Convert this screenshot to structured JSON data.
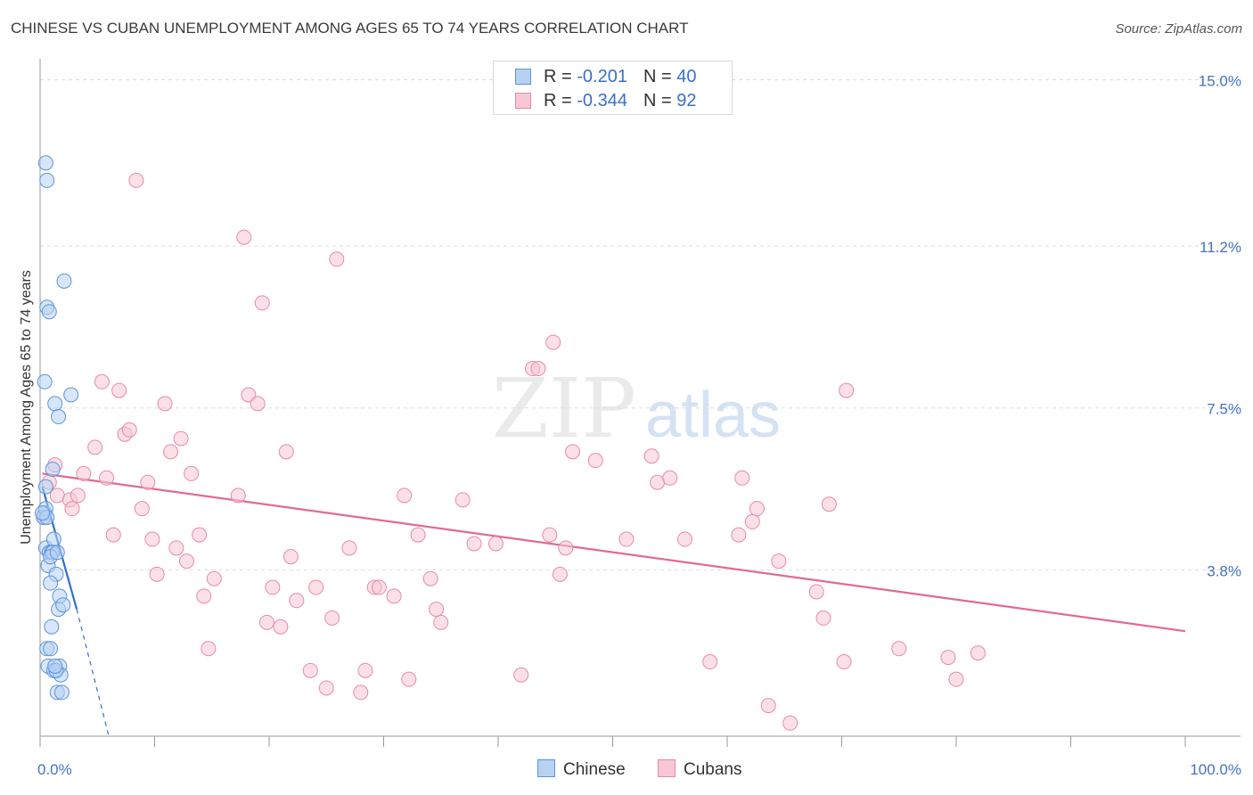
{
  "title": "CHINESE VS CUBAN UNEMPLOYMENT AMONG AGES 65 TO 74 YEARS CORRELATION CHART",
  "source": "Source: ZipAtlas.com",
  "colors": {
    "chinese_fill": "#b7d1f3",
    "chinese_stroke": "#5d93dd",
    "chinese_line": "#2f6fd0",
    "cubans_fill": "#f8c6d4",
    "cubans_stroke": "#e88aa7",
    "cubans_line": "#e06a95",
    "axis_label": "#4472c4",
    "grid": "#dddddd"
  },
  "legend": {
    "rows": [
      {
        "series": "Chinese",
        "r_label": "R =",
        "r_value": "-0.201",
        "n_label": "N =",
        "n_value": "40"
      },
      {
        "series": "Cubans",
        "r_label": "R =",
        "r_value": "-0.344",
        "n_label": "N =",
        "n_value": "92"
      }
    ]
  },
  "bottom_legend": [
    {
      "label": "Chinese"
    },
    {
      "label": "Cubans"
    }
  ],
  "watermark": {
    "part1": "ZIP",
    "part2": "atlas"
  },
  "chart_data": {
    "type": "scatter",
    "title": "CHINESE VS CUBAN UNEMPLOYMENT AMONG AGES 65 TO 74 YEARS CORRELATION CHART",
    "xlabel": "",
    "ylabel": "Unemployment Among Ages 65 to 74 years",
    "xlim": [
      0,
      100
    ],
    "ylim": [
      0,
      15.6
    ],
    "y_ticks": [
      {
        "value": 3.8,
        "label": "3.8%"
      },
      {
        "value": 7.5,
        "label": "7.5%"
      },
      {
        "value": 11.2,
        "label": "11.2%"
      },
      {
        "value": 15.0,
        "label": "15.0%"
      }
    ],
    "x_tick_labels": [
      {
        "value": 0,
        "label": "0.0%"
      },
      {
        "value": 100,
        "label": "100.0%"
      }
    ],
    "x_minor_ticks": [
      0,
      10,
      20,
      30,
      40,
      50,
      60,
      70,
      80,
      90,
      100
    ],
    "grid": true,
    "series": [
      {
        "name": "Chinese",
        "r": -0.201,
        "n": 40,
        "points": [
          [
            0.4,
            5.1
          ],
          [
            0.3,
            5.0
          ],
          [
            0.5,
            5.2
          ],
          [
            0.6,
            5.0
          ],
          [
            0.5,
            4.3
          ],
          [
            0.8,
            4.2
          ],
          [
            1.0,
            4.2
          ],
          [
            1.2,
            4.5
          ],
          [
            1.1,
            4.2
          ],
          [
            0.7,
            3.9
          ],
          [
            1.4,
            3.7
          ],
          [
            0.9,
            3.5
          ],
          [
            1.7,
            3.2
          ],
          [
            1.6,
            2.9
          ],
          [
            2.0,
            3.0
          ],
          [
            1.0,
            2.5
          ],
          [
            0.6,
            2.0
          ],
          [
            0.9,
            2.0
          ],
          [
            0.7,
            1.6
          ],
          [
            1.2,
            1.5
          ],
          [
            1.7,
            1.6
          ],
          [
            1.8,
            1.4
          ],
          [
            1.5,
            1.0
          ],
          [
            1.9,
            1.0
          ],
          [
            0.5,
            5.7
          ],
          [
            1.1,
            6.1
          ],
          [
            1.3,
            7.6
          ],
          [
            1.6,
            7.3
          ],
          [
            2.7,
            7.8
          ],
          [
            0.4,
            8.1
          ],
          [
            0.6,
            9.8
          ],
          [
            0.8,
            9.7
          ],
          [
            2.1,
            10.4
          ],
          [
            0.6,
            12.7
          ],
          [
            0.5,
            13.1
          ],
          [
            1.4,
            1.5
          ],
          [
            0.9,
            4.1
          ],
          [
            0.2,
            5.1
          ],
          [
            1.3,
            1.6
          ],
          [
            1.5,
            4.2
          ]
        ],
        "trend": {
          "x0": 0.2,
          "y0": 5.7,
          "x1": 3.2,
          "y1": 2.9,
          "dash_to": {
            "x": 6.0,
            "y": 0.0
          }
        }
      },
      {
        "name": "Cubans",
        "r": -0.344,
        "n": 92,
        "points": [
          [
            0.3,
            5.0
          ],
          [
            0.8,
            5.8
          ],
          [
            1.3,
            6.2
          ],
          [
            1.5,
            5.5
          ],
          [
            2.6,
            5.4
          ],
          [
            2.8,
            5.2
          ],
          [
            3.3,
            5.5
          ],
          [
            3.8,
            6.0
          ],
          [
            4.8,
            6.6
          ],
          [
            5.4,
            8.1
          ],
          [
            5.8,
            5.9
          ],
          [
            6.4,
            4.6
          ],
          [
            6.9,
            7.9
          ],
          [
            7.4,
            6.9
          ],
          [
            7.8,
            7.0
          ],
          [
            8.4,
            12.7
          ],
          [
            8.9,
            5.2
          ],
          [
            9.4,
            5.8
          ],
          [
            9.8,
            4.5
          ],
          [
            10.2,
            3.7
          ],
          [
            10.9,
            7.6
          ],
          [
            11.4,
            6.5
          ],
          [
            11.9,
            4.3
          ],
          [
            12.3,
            6.8
          ],
          [
            12.8,
            4.0
          ],
          [
            13.2,
            6.0
          ],
          [
            13.9,
            4.6
          ],
          [
            14.3,
            3.2
          ],
          [
            14.7,
            2.0
          ],
          [
            15.2,
            3.6
          ],
          [
            17.3,
            5.5
          ],
          [
            17.8,
            11.4
          ],
          [
            18.2,
            7.8
          ],
          [
            19.0,
            7.6
          ],
          [
            19.4,
            9.9
          ],
          [
            19.8,
            2.6
          ],
          [
            20.3,
            3.4
          ],
          [
            21.0,
            2.5
          ],
          [
            21.5,
            6.5
          ],
          [
            21.9,
            4.1
          ],
          [
            22.4,
            3.1
          ],
          [
            23.6,
            1.5
          ],
          [
            24.1,
            3.4
          ],
          [
            25.0,
            1.1
          ],
          [
            25.5,
            2.7
          ],
          [
            25.9,
            10.9
          ],
          [
            27.0,
            4.3
          ],
          [
            28.0,
            1.0
          ],
          [
            28.4,
            1.5
          ],
          [
            29.2,
            3.4
          ],
          [
            29.6,
            3.4
          ],
          [
            30.9,
            3.2
          ],
          [
            31.8,
            5.5
          ],
          [
            32.2,
            1.3
          ],
          [
            33.0,
            4.6
          ],
          [
            34.1,
            3.6
          ],
          [
            34.6,
            2.9
          ],
          [
            35.0,
            2.6
          ],
          [
            36.9,
            5.4
          ],
          [
            37.9,
            4.4
          ],
          [
            39.8,
            4.4
          ],
          [
            42.0,
            1.4
          ],
          [
            43.0,
            8.4
          ],
          [
            43.5,
            8.4
          ],
          [
            44.5,
            4.6
          ],
          [
            44.8,
            9.0
          ],
          [
            45.4,
            3.7
          ],
          [
            45.9,
            4.3
          ],
          [
            46.5,
            6.5
          ],
          [
            48.5,
            6.3
          ],
          [
            51.2,
            4.5
          ],
          [
            53.4,
            6.4
          ],
          [
            53.9,
            5.8
          ],
          [
            55.0,
            5.9
          ],
          [
            56.3,
            4.5
          ],
          [
            58.5,
            1.7
          ],
          [
            61.0,
            4.6
          ],
          [
            61.3,
            5.9
          ],
          [
            62.2,
            4.9
          ],
          [
            62.6,
            5.2
          ],
          [
            63.6,
            0.7
          ],
          [
            64.5,
            4.0
          ],
          [
            65.5,
            0.3
          ],
          [
            67.8,
            3.3
          ],
          [
            68.4,
            2.7
          ],
          [
            68.9,
            5.3
          ],
          [
            70.2,
            1.7
          ],
          [
            70.4,
            7.9
          ],
          [
            75.0,
            2.0
          ],
          [
            79.3,
            1.8
          ],
          [
            80.0,
            1.3
          ],
          [
            81.9,
            1.9
          ]
        ],
        "trend": {
          "x0": 0.2,
          "y0": 6.0,
          "x1": 100,
          "y1": 2.4
        }
      }
    ]
  }
}
